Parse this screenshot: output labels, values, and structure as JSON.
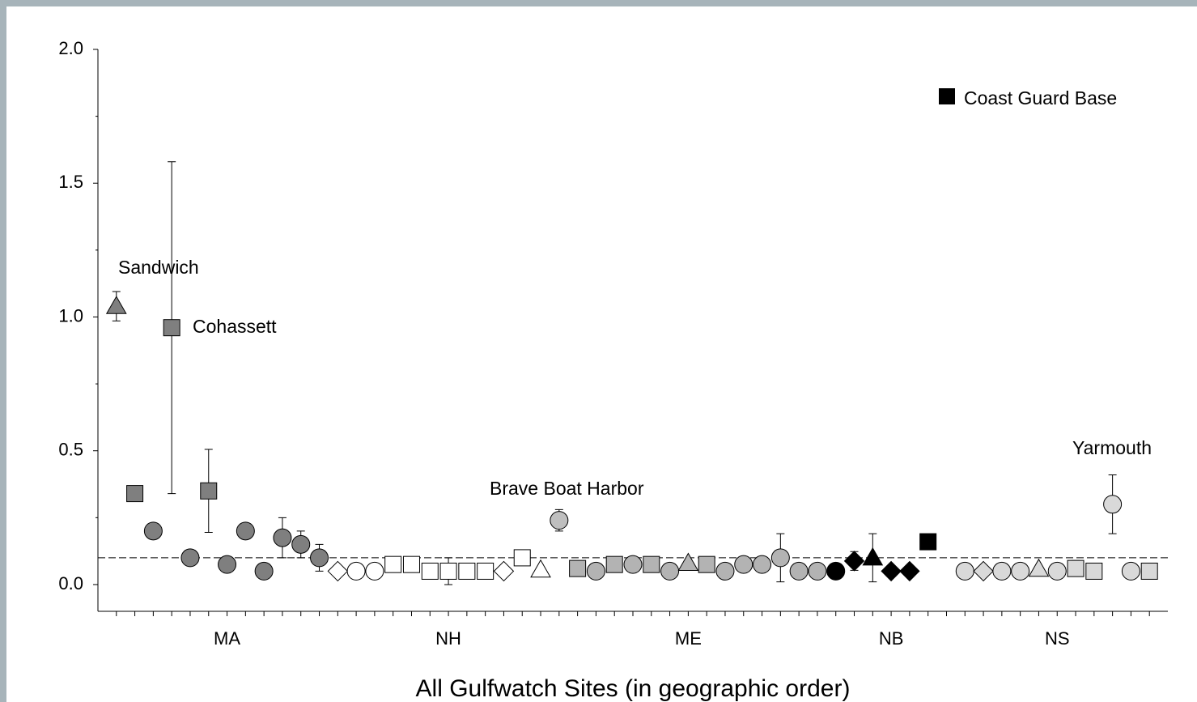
{
  "chart_data": {
    "type": "scatter",
    "xlabel": "All Gulfwatch Sites (in geographic order)",
    "ylim": [
      -0.1,
      2.0
    ],
    "yticks": [
      {
        "value": 0,
        "label": "0.0"
      },
      0.5,
      {
        "value": 1,
        "label": "1.0"
      },
      1.5,
      {
        "value": 2,
        "label": "2.0"
      }
    ],
    "yminor_ticks": [
      0.25,
      0.75,
      1.25,
      1.75
    ],
    "xlim": [
      0,
      58
    ],
    "xminor_ticks": [
      1,
      2,
      3,
      4,
      5,
      6,
      7,
      8,
      9,
      10,
      11,
      12,
      13,
      14,
      15,
      16,
      17,
      18,
      19,
      20,
      21,
      22,
      23,
      24,
      25,
      26,
      27,
      28,
      29,
      30,
      31,
      32,
      33,
      34,
      35,
      36,
      37,
      38,
      39,
      40,
      41,
      42,
      43,
      44,
      45,
      46,
      47,
      48,
      49,
      50,
      51,
      52,
      53,
      54,
      55,
      56,
      57
    ],
    "group_labels": [
      {
        "value": 7,
        "label": "MA"
      },
      {
        "value": 19,
        "label": "NH"
      },
      {
        "value": 32,
        "label": "ME"
      },
      {
        "value": 43,
        "label": "NB"
      },
      {
        "value": 52,
        "label": "NS"
      }
    ],
    "reference_line": 0.1,
    "x": [
      1,
      2,
      3,
      4,
      5,
      6,
      7,
      8,
      9,
      10,
      11,
      12,
      13,
      14,
      15,
      16,
      17,
      18,
      19,
      20,
      21,
      22,
      23,
      24,
      25,
      26,
      27,
      28,
      29,
      30,
      31,
      32,
      33,
      34,
      35,
      36,
      37,
      38,
      39,
      40,
      41,
      42,
      43,
      44,
      45,
      47,
      48,
      49,
      50,
      51,
      52,
      53,
      54,
      55,
      56,
      57
    ],
    "values": [
      1.04,
      0.34,
      0.2,
      0.96,
      0.1,
      0.35,
      0.075,
      0.2,
      0.05,
      0.175,
      0.15,
      0.1,
      0.05,
      0.05,
      0.05,
      0.075,
      0.075,
      0.05,
      0.05,
      0.05,
      0.05,
      0.05,
      0.1,
      0.055,
      0.24,
      0.06,
      0.05,
      0.075,
      0.075,
      0.075,
      0.05,
      0.08,
      0.075,
      0.05,
      0.075,
      0.075,
      0.1,
      0.05,
      0.05,
      0.05,
      0.088,
      0.1,
      0.05,
      0.05,
      0.16,
      0.05,
      0.05,
      0.05,
      0.05,
      0.058,
      0.05,
      0.06,
      0.05,
      0.3,
      0.05,
      0.05
    ],
    "errors": [
      0.055,
      null,
      null,
      0.62,
      null,
      0.155,
      null,
      null,
      null,
      0.075,
      0.05,
      0.05,
      null,
      null,
      null,
      null,
      null,
      null,
      0.05,
      null,
      null,
      null,
      null,
      null,
      0.04,
      null,
      null,
      null,
      null,
      null,
      null,
      null,
      null,
      null,
      null,
      null,
      0.09,
      null,
      null,
      null,
      0.035,
      0.09,
      null,
      null,
      null,
      null,
      null,
      null,
      null,
      null,
      null,
      0.03,
      null,
      0.11,
      null,
      null
    ],
    "markers": [
      "triangle",
      "square",
      "circle",
      "square",
      "circle",
      "square",
      "circle",
      "circle",
      "circle",
      "circle",
      "circle",
      "circle",
      "diamond",
      "circle",
      "circle",
      "square",
      "square",
      "square",
      "square",
      "square",
      "square",
      "diamond",
      "square",
      "triangle",
      "circle",
      "square",
      "circle",
      "square",
      "circle",
      "square",
      "circle",
      "triangle",
      "square",
      "circle",
      "circle",
      "circle",
      "circle",
      "circle",
      "circle",
      "circle",
      "diamond",
      "triangle",
      "diamond",
      "diamond",
      "square",
      "circle",
      "diamond",
      "circle",
      "circle",
      "triangle",
      "circle",
      "square",
      "square",
      "circle",
      "circle",
      "square"
    ],
    "fills": [
      "#7f7f7f",
      "#7f7f7f",
      "#7f7f7f",
      "#7f7f7f",
      "#7f7f7f",
      "#7f7f7f",
      "#7f7f7f",
      "#7f7f7f",
      "#7f7f7f",
      "#7f7f7f",
      "#7f7f7f",
      "#7f7f7f",
      "#ffffff",
      "#ffffff",
      "#ffffff",
      "#ffffff",
      "#ffffff",
      "#ffffff",
      "#ffffff",
      "#ffffff",
      "#ffffff",
      "#ffffff",
      "#ffffff",
      "#ffffff",
      "#bfbfbf",
      "#b3b3b3",
      "#b3b3b3",
      "#b3b3b3",
      "#b3b3b3",
      "#b3b3b3",
      "#b3b3b3",
      "#b3b3b3",
      "#b3b3b3",
      "#b3b3b3",
      "#b3b3b3",
      "#b3b3b3",
      "#b3b3b3",
      "#b3b3b3",
      "#b3b3b3",
      "#000000",
      "#000000",
      "#000000",
      "#000000",
      "#000000",
      "#000000",
      "#d9d9d9",
      "#d9d9d9",
      "#d9d9d9",
      "#d9d9d9",
      "#d9d9d9",
      "#d9d9d9",
      "#d9d9d9",
      "#d9d9d9",
      "#d9d9d9",
      "#d9d9d9",
      "#d9d9d9"
    ],
    "annotations": [
      "Sandwich",
      "Cohassett",
      "Brave Boat Harbor",
      "Yarmouth",
      "Coast Guard Base"
    ]
  }
}
